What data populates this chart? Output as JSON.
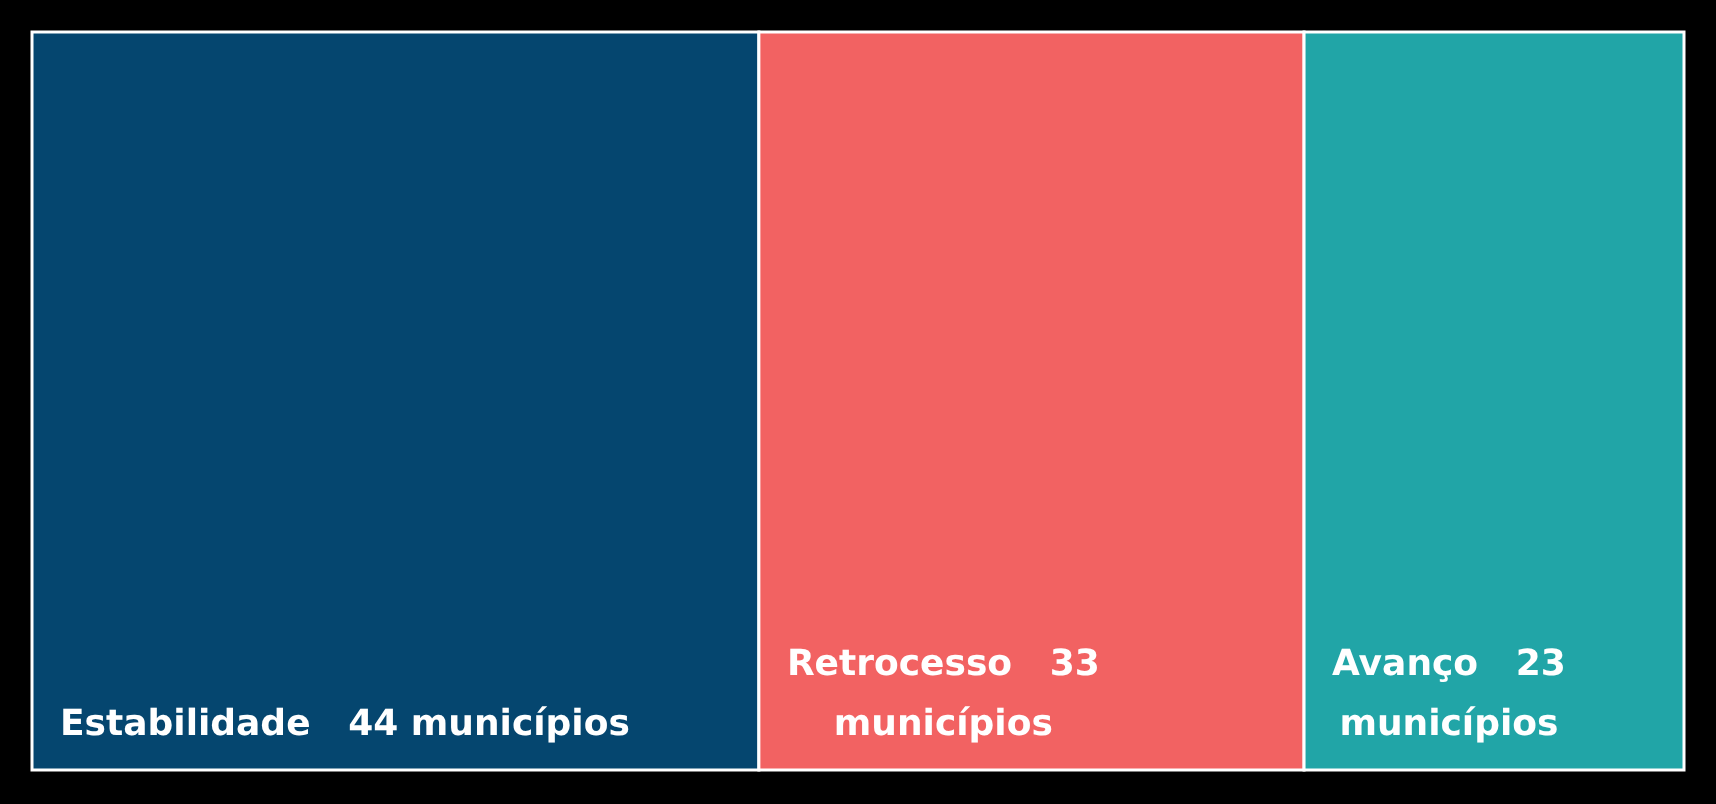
{
  "chart_data": {
    "type": "other",
    "categories": [
      "Estabilidade",
      "Retrocesso",
      "Avanço"
    ],
    "values": [
      44,
      33,
      23
    ],
    "value_labels": [
      "44 municípios",
      "33 municípios",
      "23 municípios"
    ],
    "colors": [
      "#05466f",
      "#f26262",
      "#21a5a7"
    ]
  }
}
